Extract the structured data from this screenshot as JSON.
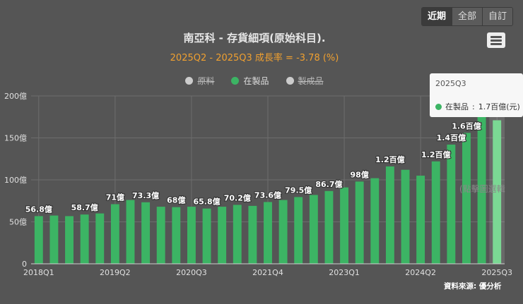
{
  "range_buttons": [
    "近期",
    "全部",
    "自訂"
  ],
  "legend": [
    {
      "label": "原料",
      "color": "#cccccc",
      "active": false
    },
    {
      "label": "在製品",
      "color": "#3cb464",
      "active": true
    },
    {
      "label": "製成品",
      "color": "#cccccc",
      "active": false
    }
  ],
  "tooltip": {
    "header": "2025Q3",
    "series": "在製品",
    "value": "1.7百億(元)"
  },
  "hint": "(點擊圖選輯",
  "credit": "資料來源: 優分析",
  "colors": {
    "bar": "#3cb464",
    "bar_highlight": "#7bd894",
    "grid": "#6d6d6d",
    "axis_text": "#e0e0e0"
  },
  "chart_data": {
    "type": "bar",
    "title": "南亞科 - 存貨細項(原始科目).",
    "subtitle": "2025Q2 - 2025Q3 成長率 = -3.78 (%)",
    "yunit": "億",
    "ylim": [
      0,
      200
    ],
    "yticks": [
      0,
      50,
      100,
      150,
      200
    ],
    "ytick_labels": [
      "0",
      "50億",
      "100億",
      "150億",
      "200億"
    ],
    "categories": [
      "2018Q1",
      "2018Q2",
      "2018Q3",
      "2018Q4",
      "2019Q1",
      "2019Q2",
      "2019Q3",
      "2019Q4",
      "2020Q1",
      "2020Q2",
      "2020Q3",
      "2020Q4",
      "2021Q1",
      "2021Q2",
      "2021Q3",
      "2021Q4",
      "2022Q1",
      "2022Q2",
      "2022Q3",
      "2022Q4",
      "2023Q1",
      "2023Q2",
      "2023Q3",
      "2023Q4",
      "2024Q1",
      "2024Q2",
      "2024Q3",
      "2024Q4",
      "2025Q1",
      "2025Q2",
      "2025Q3"
    ],
    "xtick_labels": [
      "2018Q1",
      "2019Q2",
      "2020Q3",
      "2021Q4",
      "2023Q1",
      "2024Q2",
      "2025Q3"
    ],
    "xtick_indices": [
      0,
      5,
      10,
      15,
      20,
      25,
      30
    ],
    "series": [
      {
        "name": "在製品",
        "values": [
          56.8,
          57.5,
          56.8,
          58.7,
          60,
          71,
          76,
          73.3,
          68,
          67.5,
          68,
          65.8,
          68,
          70.2,
          69,
          73.6,
          76,
          79.5,
          82,
          86.7,
          91,
          98,
          102,
          116,
          112,
          105,
          122,
          142,
          156,
          178,
          171
        ]
      }
    ],
    "data_labels": [
      {
        "index": 0,
        "text": "56.8億"
      },
      {
        "index": 3,
        "text": "58.7億"
      },
      {
        "index": 5,
        "text": "71億"
      },
      {
        "index": 7,
        "text": "73.3億"
      },
      {
        "index": 9,
        "text": "68億"
      },
      {
        "index": 11,
        "text": "65.8億"
      },
      {
        "index": 13,
        "text": "70.2億"
      },
      {
        "index": 15,
        "text": "73.6億"
      },
      {
        "index": 17,
        "text": "79.5億"
      },
      {
        "index": 19,
        "text": "86.7億"
      },
      {
        "index": 21,
        "text": "98億"
      },
      {
        "index": 23,
        "text": "1.2百億"
      },
      {
        "index": 26,
        "text": "1.2百億"
      },
      {
        "index": 27,
        "text": "1.4百億"
      },
      {
        "index": 28,
        "text": "1.6百億"
      }
    ],
    "highlight_index": 30,
    "grid": true,
    "legend_position": "top"
  }
}
